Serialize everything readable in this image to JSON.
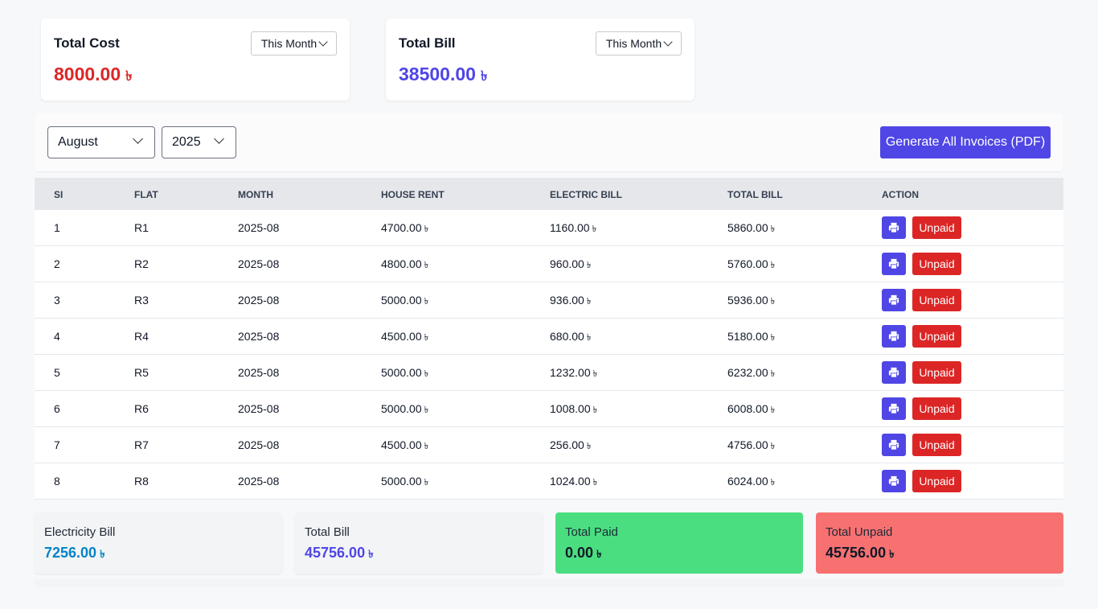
{
  "currency": "৳",
  "cards": {
    "cost": {
      "title": "Total Cost",
      "amount": "8000.00",
      "period": "This Month",
      "color": "#dc2626"
    },
    "bill": {
      "title": "Total Bill",
      "amount": "38500.00",
      "period": "This Month",
      "color": "#4f46e5"
    }
  },
  "filters": {
    "month": "August",
    "year": "2025",
    "generate_label": "Generate All Invoices (PDF)"
  },
  "table": {
    "headers": [
      "SI",
      "FLAT",
      "MONTH",
      "HOUSE RENT",
      "ELECTRIC BILL",
      "TOTAL BILL",
      "ACTION"
    ],
    "rows": [
      {
        "si": "1",
        "flat": "R1",
        "month": "2025-08",
        "rent": "4700.00",
        "electric": "1160.00",
        "total": "5860.00",
        "status": "Unpaid"
      },
      {
        "si": "2",
        "flat": "R2",
        "month": "2025-08",
        "rent": "4800.00",
        "electric": "960.00",
        "total": "5760.00",
        "status": "Unpaid"
      },
      {
        "si": "3",
        "flat": "R3",
        "month": "2025-08",
        "rent": "5000.00",
        "electric": "936.00",
        "total": "5936.00",
        "status": "Unpaid"
      },
      {
        "si": "4",
        "flat": "R4",
        "month": "2025-08",
        "rent": "4500.00",
        "electric": "680.00",
        "total": "5180.00",
        "status": "Unpaid"
      },
      {
        "si": "5",
        "flat": "R5",
        "month": "2025-08",
        "rent": "5000.00",
        "electric": "1232.00",
        "total": "6232.00",
        "status": "Unpaid"
      },
      {
        "si": "6",
        "flat": "R6",
        "month": "2025-08",
        "rent": "5000.00",
        "electric": "1008.00",
        "total": "6008.00",
        "status": "Unpaid"
      },
      {
        "si": "7",
        "flat": "R7",
        "month": "2025-08",
        "rent": "4500.00",
        "electric": "256.00",
        "total": "4756.00",
        "status": "Unpaid"
      },
      {
        "si": "8",
        "flat": "R8",
        "month": "2025-08",
        "rent": "5000.00",
        "electric": "1024.00",
        "total": "6024.00",
        "status": "Unpaid"
      }
    ]
  },
  "summary": {
    "electricity": {
      "label": "Electricity Bill",
      "value": "7256.00",
      "bg": "#f3f4f6",
      "color": "#0284c7"
    },
    "total": {
      "label": "Total Bill",
      "value": "45756.00",
      "bg": "#f3f4f6",
      "color": "#4f46e5"
    },
    "paid": {
      "label": "Total Paid",
      "value": "0.00",
      "bg": "#4ade80",
      "color": "#111827"
    },
    "unpaid": {
      "label": "Total Unpaid",
      "value": "45756.00",
      "bg": "#f87171",
      "color": "#111827"
    }
  }
}
